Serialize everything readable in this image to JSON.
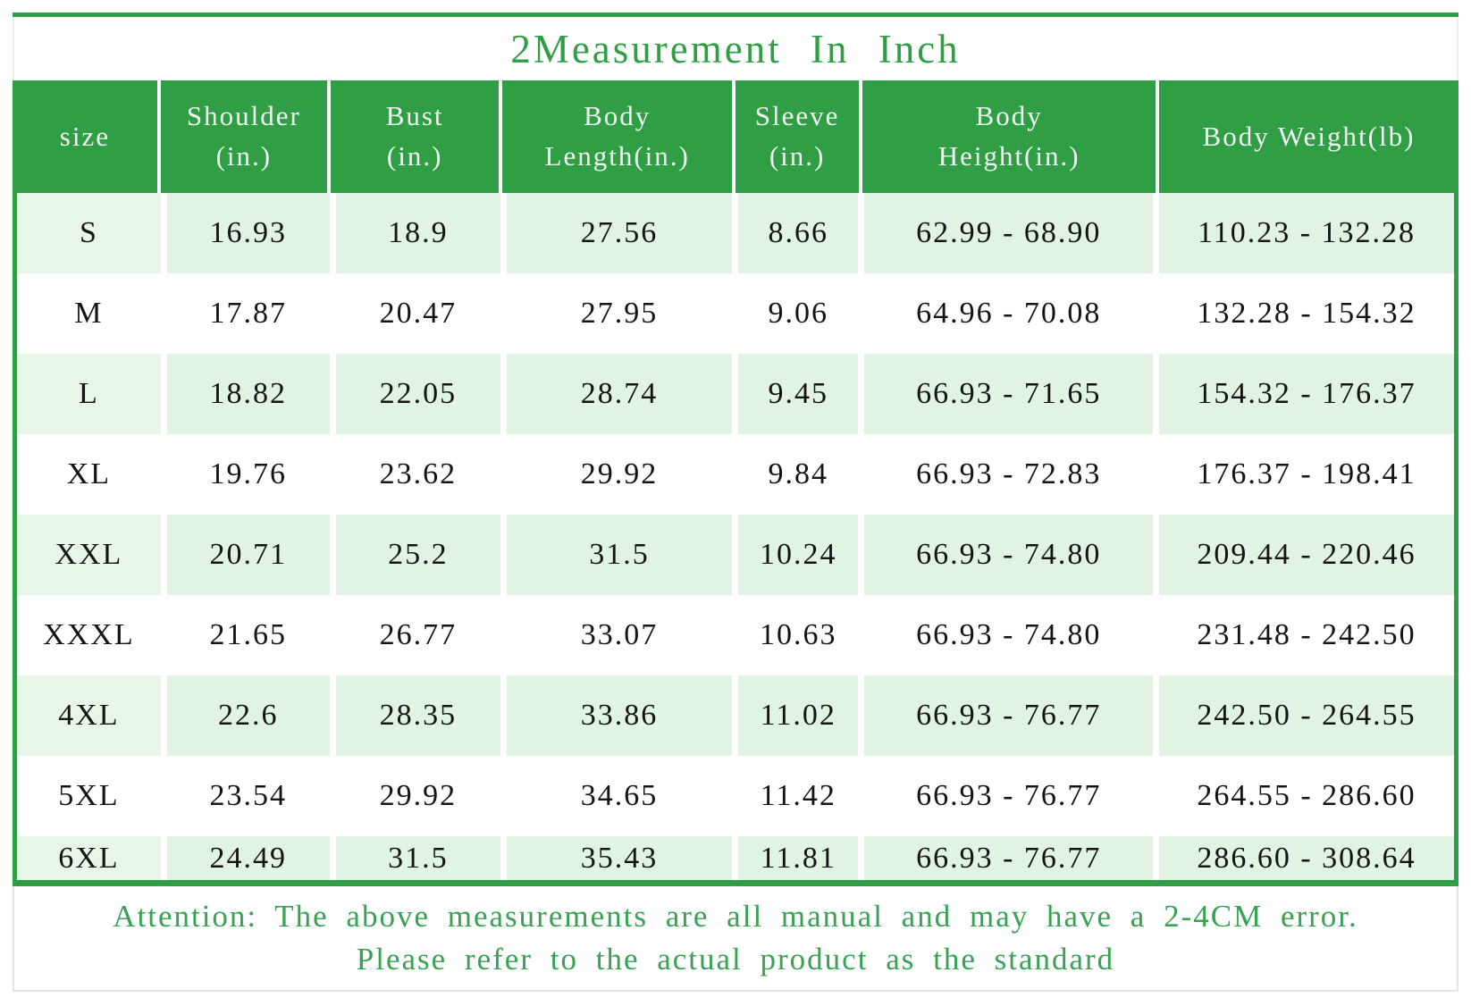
{
  "title": "2Measurement In Inch",
  "colors": {
    "accent_green": "#2F9E44",
    "light_row_green": "#E1F3E2",
    "title_text_green": "#2F9E44",
    "note_text_green": "#36A252",
    "header_text": "#F4FBF4",
    "data_text": "#141414"
  },
  "table": {
    "columns": [
      {
        "id": "size",
        "label": "size"
      },
      {
        "id": "shoulder",
        "label": "Shoulder\n(in.)"
      },
      {
        "id": "bust",
        "label": "Bust\n(in.)"
      },
      {
        "id": "blen",
        "label": "Body\nLength(in.)"
      },
      {
        "id": "sleeve",
        "label": "Sleeve\n(in.)"
      },
      {
        "id": "bht",
        "label": "Body\nHeight(in.)"
      },
      {
        "id": "bwt",
        "label": "Body Weight(lb)"
      }
    ],
    "rows": [
      {
        "size": "S",
        "cells": [
          "16.93",
          "18.9",
          "27.56",
          "8.66",
          "62.99 - 68.90",
          "110.23 - 132.28"
        ]
      },
      {
        "size": "M",
        "cells": [
          "17.87",
          "20.47",
          "27.95",
          "9.06",
          "64.96 - 70.08",
          "132.28 - 154.32"
        ]
      },
      {
        "size": "L",
        "cells": [
          "18.82",
          "22.05",
          "28.74",
          "9.45",
          "66.93 - 71.65",
          "154.32 - 176.37"
        ]
      },
      {
        "size": "XL",
        "cells": [
          "19.76",
          "23.62",
          "29.92",
          "9.84",
          "66.93 - 72.83",
          "176.37 - 198.41"
        ]
      },
      {
        "size": "XXL",
        "cells": [
          "20.71",
          "25.2",
          "31.5",
          "10.24",
          "66.93 - 74.80",
          "209.44 - 220.46"
        ]
      },
      {
        "size": "XXXL",
        "cells": [
          "21.65",
          "26.77",
          "33.07",
          "10.63",
          "66.93 - 74.80",
          "231.48 - 242.50"
        ]
      },
      {
        "size": "4XL",
        "cells": [
          "22.6",
          "28.35",
          "33.86",
          "11.02",
          "66.93 - 76.77",
          "242.50 - 264.55"
        ]
      },
      {
        "size": "5XL",
        "cells": [
          "23.54",
          "29.92",
          "34.65",
          "11.42",
          "66.93 - 76.77",
          "264.55 - 286.60"
        ]
      },
      {
        "size": "6XL",
        "cells": [
          "24.49",
          "31.5",
          "35.43",
          "11.81",
          "66.93 - 76.77",
          "286.60 - 308.64"
        ]
      }
    ]
  },
  "note": {
    "line1": "Attention: The above measurements are all manual and may have a 2-4CM error.",
    "line2": "Please refer to the actual product as the standard"
  }
}
